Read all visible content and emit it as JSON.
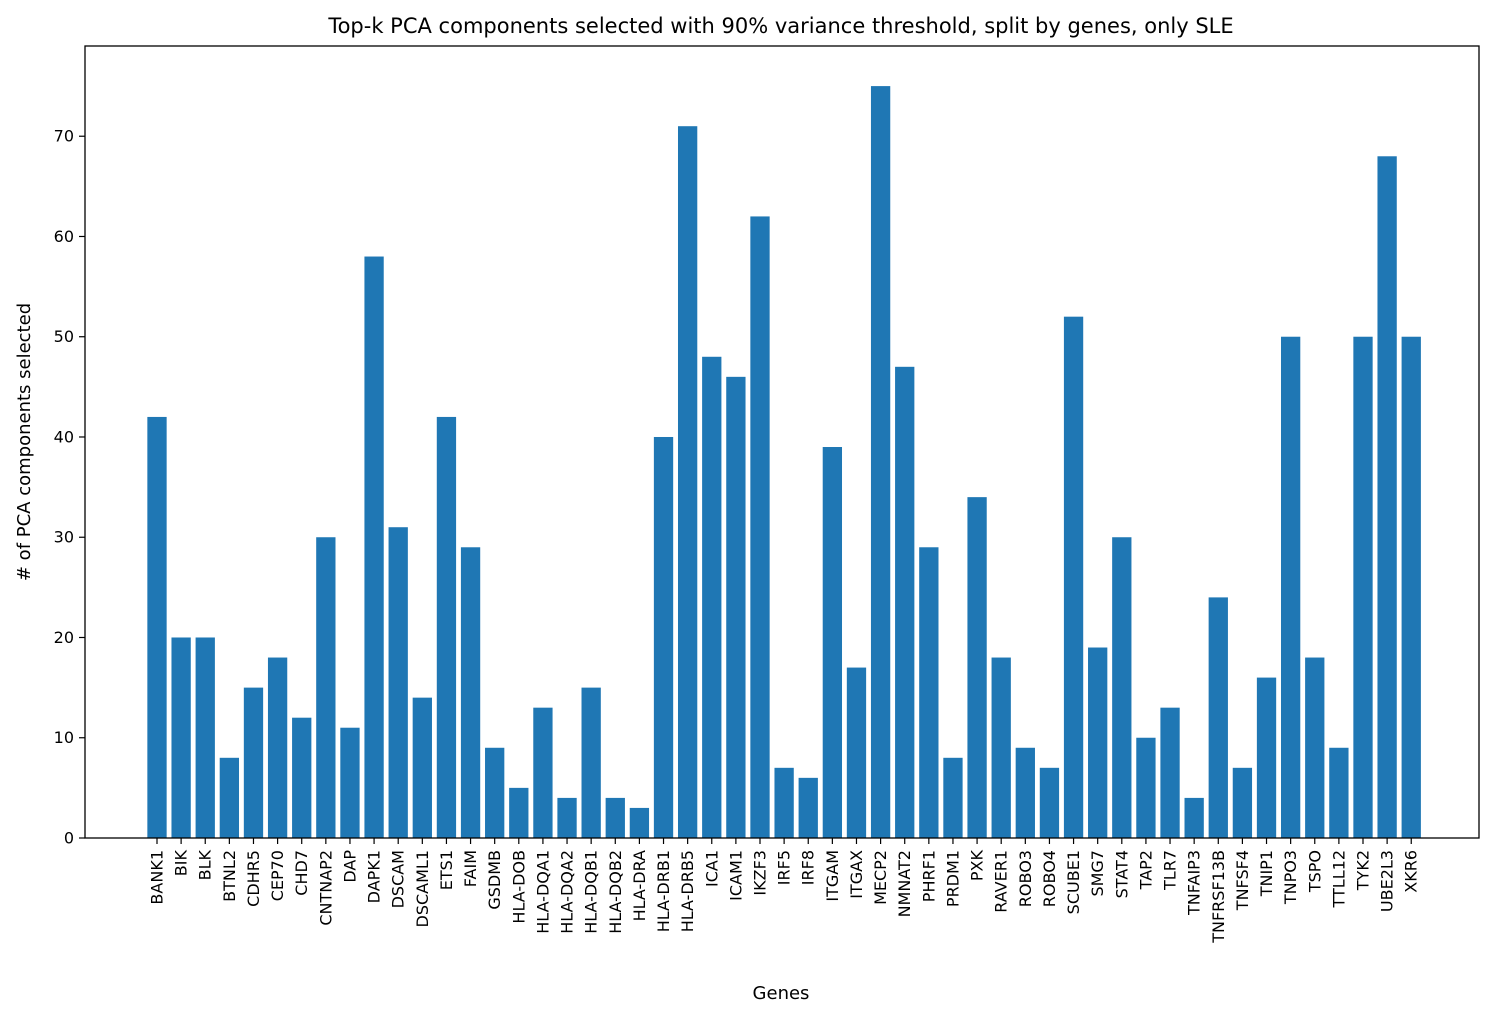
{
  "chart_data": {
    "type": "bar",
    "title": "Top-k PCA components selected with 90% variance threshold, split by genes, only SLE",
    "xlabel": "Genes",
    "ylabel": "# of PCA components selected",
    "ylim": [
      0,
      79
    ],
    "yticks": [
      0,
      10,
      20,
      30,
      40,
      50,
      60,
      70
    ],
    "grid": false,
    "bar_color": "#1f77b4",
    "categories": [
      "BANK1",
      "BIK",
      "BLK",
      "BTNL2",
      "CDHR5",
      "CEP70",
      "CHD7",
      "CNTNAP2",
      "DAP",
      "DAPK1",
      "DSCAM",
      "DSCAML1",
      "ETS1",
      "FAIM",
      "GSDMB",
      "HLA-DOB",
      "HLA-DQA1",
      "HLA-DQA2",
      "HLA-DQB1",
      "HLA-DQB2",
      "HLA-DRA",
      "HLA-DRB1",
      "HLA-DRB5",
      "ICA1",
      "ICAM1",
      "IKZF3",
      "IRF5",
      "IRF8",
      "ITGAM",
      "ITGAX",
      "MECP2",
      "NMNAT2",
      "PHRF1",
      "PRDM1",
      "PXK",
      "RAVER1",
      "ROBO3",
      "ROBO4",
      "SCUBE1",
      "SMG7",
      "STAT4",
      "TAP2",
      "TLR7",
      "TNFAIP3",
      "TNFRSF13B",
      "TNFSF4",
      "TNIP1",
      "TNPO3",
      "TSPO",
      "TTLL12",
      "TYK2",
      "UBE2L3",
      "XKR6"
    ],
    "values": [
      42,
      20,
      20,
      8,
      15,
      18,
      12,
      30,
      11,
      58,
      31,
      14,
      42,
      29,
      9,
      5,
      13,
      4,
      15,
      4,
      3,
      40,
      71,
      48,
      46,
      62,
      7,
      6,
      39,
      17,
      75,
      47,
      29,
      8,
      34,
      18,
      9,
      7,
      52,
      19,
      30,
      10,
      13,
      4,
      24,
      7,
      16,
      50,
      18,
      9,
      50,
      68,
      50
    ]
  }
}
